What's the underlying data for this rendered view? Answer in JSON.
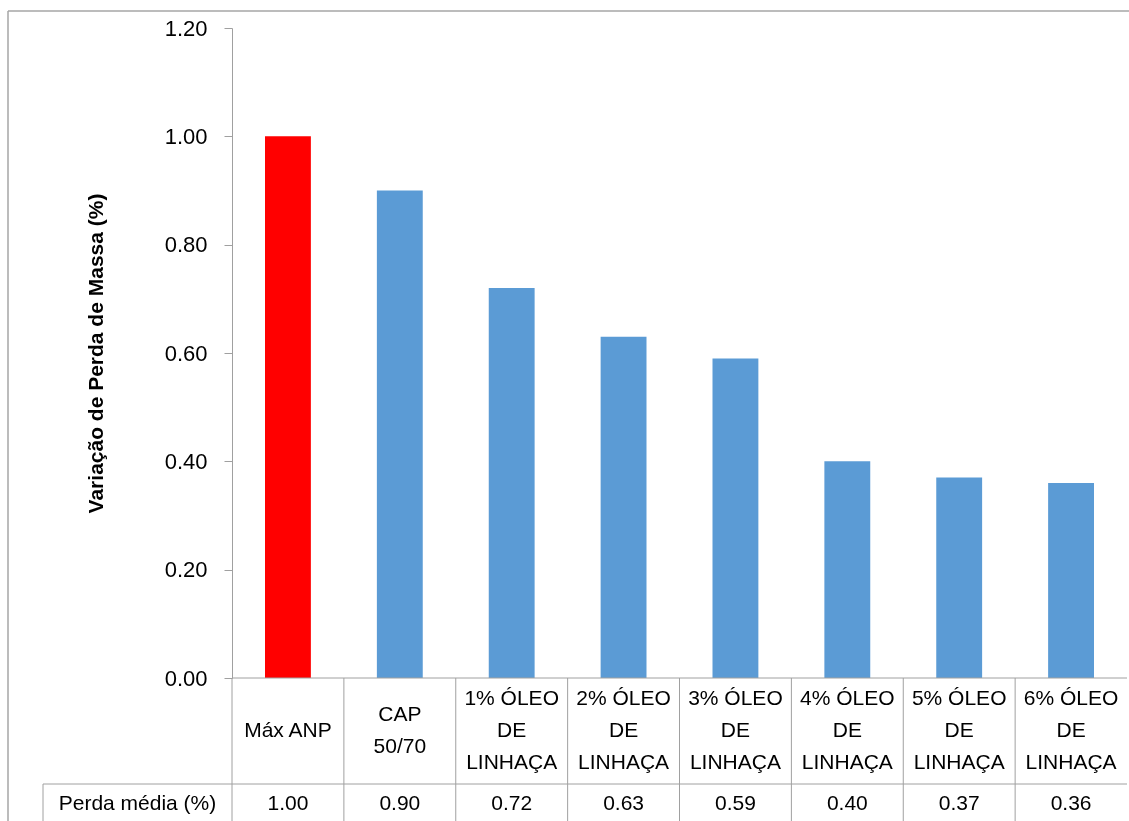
{
  "chart_data": {
    "type": "bar",
    "ylabel": "Variação de Perda de Massa (%)",
    "categories": [
      "Máx ANP",
      "CAP 50/70",
      "1% ÓLEO DE LINHAÇA",
      "2% ÓLEO DE LINHAÇA",
      "3% ÓLEO DE LINHAÇA",
      "4% ÓLEO DE LINHAÇA",
      "5% ÓLEO DE LINHAÇA",
      "6% ÓLEO DE LINHAÇA"
    ],
    "series": [
      {
        "name": "Perda média (%)",
        "values": [
          1.0,
          0.9,
          0.72,
          0.63,
          0.59,
          0.4,
          0.37,
          0.36
        ],
        "value_labels": [
          "1.00",
          "0.90",
          "0.72",
          "0.63",
          "0.59",
          "0.40",
          "0.37",
          "0.36"
        ]
      }
    ],
    "colors": [
      "#ff0000",
      "#5b9bd5",
      "#5b9bd5",
      "#5b9bd5",
      "#5b9bd5",
      "#5b9bd5",
      "#5b9bd5",
      "#5b9bd5"
    ],
    "ylim": [
      0,
      1.2
    ],
    "yticks": [
      {
        "value": 0,
        "label": "0.00"
      },
      {
        "value": 0.2,
        "label": "0.20"
      },
      {
        "value": 0.4,
        "label": "0.40"
      },
      {
        "value": 0.6,
        "label": "0.60"
      },
      {
        "value": 0.8,
        "label": "0.80"
      },
      {
        "value": 1.0,
        "label": "1.00"
      },
      {
        "value": 1.2,
        "label": "1.20"
      }
    ]
  }
}
